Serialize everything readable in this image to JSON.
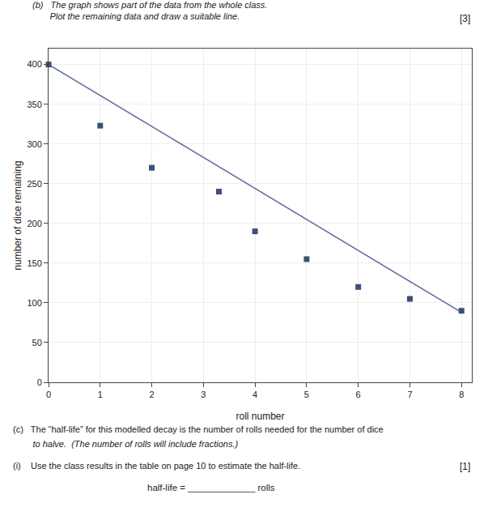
{
  "chart_data": {
    "type": "scatter",
    "title": "(b)   The graph shows part of the data from the whole class.",
    "subtitle": "       Plot the remaining data and draw a suitable line.",
    "x_label": "roll number",
    "y_label": "number of dice remaining",
    "xlim": [
      0,
      8.2
    ],
    "ylim": [
      0,
      420
    ],
    "xticks": [
      0,
      1,
      2,
      3,
      4,
      5,
      6,
      7,
      8
    ],
    "yticks": [
      0,
      50,
      100,
      150,
      200,
      250,
      300,
      350,
      400
    ],
    "grid": true,
    "series": [
      {
        "type": "line",
        "color": "#5a6a9a",
        "x": [
          0,
          8.0
        ],
        "values": [
          400,
          88
        ]
      },
      {
        "type": "scatter",
        "marker": "square",
        "color": "#3d4f7a",
        "x": [
          0,
          1,
          2,
          3.3,
          4,
          5,
          6,
          7,
          8
        ],
        "values": [
          400,
          323,
          270,
          240,
          190,
          155,
          120,
          105,
          90
        ]
      }
    ],
    "annotations": [
      "[3]",
      "(c)   The “half-life” for this modelled decay is the number of rolls needed for the number of dice",
      "        to halve.  (The number of rolls will include fractions.)",
      "(i)    Use the class results in the table on page 10 to estimate the half-life.",
      "[1]",
      "half-life = _____________ rolls"
    ]
  }
}
